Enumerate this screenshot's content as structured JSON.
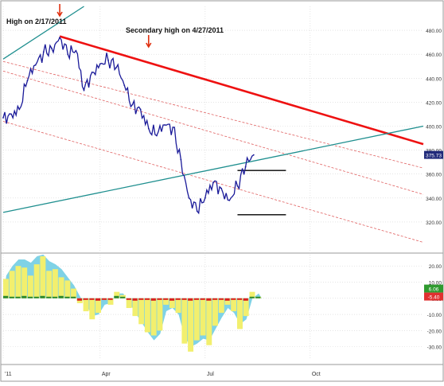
{
  "colors": {
    "price": "#1a1a99",
    "resistance": "#ee1111",
    "channel_dashed": "#e06060",
    "trendline_teal": "#1f8f8f",
    "histogram_yellow": "#f2ef6e",
    "histogram_cyan": "#7fd2e6",
    "histogram_green": "#2f8a2f",
    "histogram_red": "#d92020",
    "grid": "#d4d4d4",
    "price_badge": "#202a7a",
    "range_lines": "#000000"
  },
  "annotations": [
    {
      "id": "high-1",
      "text": "High on 2/17/2011",
      "arrow_color": "#e03010"
    },
    {
      "id": "high-2",
      "text": "Secondary high on 4/27/2011",
      "arrow_color": "#e03010"
    }
  ],
  "price_badge": "375.73",
  "indicator_badges": [
    {
      "value": "6.06",
      "bg": "#2f9a2f"
    },
    {
      "value": "-5.40",
      "bg": "#e03030"
    }
  ],
  "chart_data": [
    {
      "type": "line",
      "name": "price",
      "xlabel": "",
      "ylabel": "",
      "ylim": [
        298,
        500
      ],
      "y_ticks": [
        "320.00",
        "340.00",
        "360.00",
        "380.00",
        "400.00",
        "420.00",
        "440.00",
        "460.00",
        "480.00"
      ],
      "y_tick_values": [
        320,
        340,
        360,
        380,
        400,
        420,
        440,
        460,
        480
      ],
      "x_tick_labels": [
        "'11",
        "Apr",
        "Jul",
        "Oct"
      ],
      "x_tick_index": [
        0,
        12,
        25,
        38
      ],
      "x_index_range": [
        0,
        52
      ],
      "grid": true,
      "values": [
        407,
        410,
        414,
        438,
        451,
        462,
        465,
        474,
        460,
        463,
        430,
        445,
        452,
        455,
        449,
        434,
        418,
        414,
        398,
        392,
        401,
        399,
        372,
        340,
        329,
        340,
        353,
        348,
        338,
        350,
        366,
        376
      ],
      "x_index": [
        0,
        1,
        2,
        3,
        4,
        5,
        6,
        7,
        8,
        9,
        10,
        11,
        12,
        13,
        14,
        15,
        16,
        17,
        18,
        19,
        20,
        21,
        22,
        23,
        24,
        25,
        26,
        27,
        28,
        29,
        30,
        31
      ],
      "lines": [
        {
          "id": "resistance",
          "from": [
            7,
            475
          ],
          "to": [
            52,
            385
          ]
        },
        {
          "id": "channel-upper",
          "from": [
            0,
            454
          ],
          "to": [
            52,
            365
          ]
        },
        {
          "id": "channel-mid",
          "from": [
            0,
            446
          ],
          "to": [
            52,
            343
          ]
        },
        {
          "id": "channel-lower",
          "from": [
            0,
            404
          ],
          "to": [
            52,
            303
          ]
        },
        {
          "id": "support-teal",
          "from": [
            0,
            328
          ],
          "to": [
            52,
            400
          ]
        },
        {
          "id": "upper-teal",
          "from": [
            0,
            456
          ],
          "to": [
            10,
            500
          ]
        }
      ],
      "range_box": {
        "top": 363,
        "bottom": 326,
        "x_from": 29,
        "x_to": 35
      }
    },
    {
      "type": "bar",
      "name": "oscillator",
      "xlabel": "",
      "ylabel": "",
      "ylim": [
        -38,
        25
      ],
      "y_ticks": [
        "20.00",
        "10.00",
        "0.00",
        "-10.00",
        "-20.00",
        "-30.00"
      ],
      "y_tick_values": [
        20,
        10,
        0,
        -10,
        -20,
        -30
      ],
      "grid": true,
      "values": [
        12,
        17,
        20,
        19,
        14,
        21,
        26,
        17,
        18,
        13,
        11,
        6,
        -3,
        -8,
        -13,
        -9,
        -1,
        -4,
        4,
        2,
        -6,
        -11,
        -16,
        -21,
        -23,
        -20,
        -4,
        -6,
        -9,
        -28,
        -33,
        -26,
        -23,
        -29,
        -17,
        -9,
        -4,
        -8,
        -19,
        -11,
        4,
        1
      ],
      "signal": [
        14,
        20,
        24,
        24,
        22,
        26,
        27,
        23,
        21,
        18,
        13,
        8,
        1,
        -4,
        -11,
        -10,
        -4,
        -3,
        3,
        3,
        -3,
        -9,
        -15,
        -21,
        -26,
        -22,
        -8,
        -6,
        -10,
        -24,
        -30,
        -28,
        -25,
        -26,
        -19,
        -12,
        -6,
        -9,
        -16,
        -13,
        0,
        3
      ]
    }
  ]
}
